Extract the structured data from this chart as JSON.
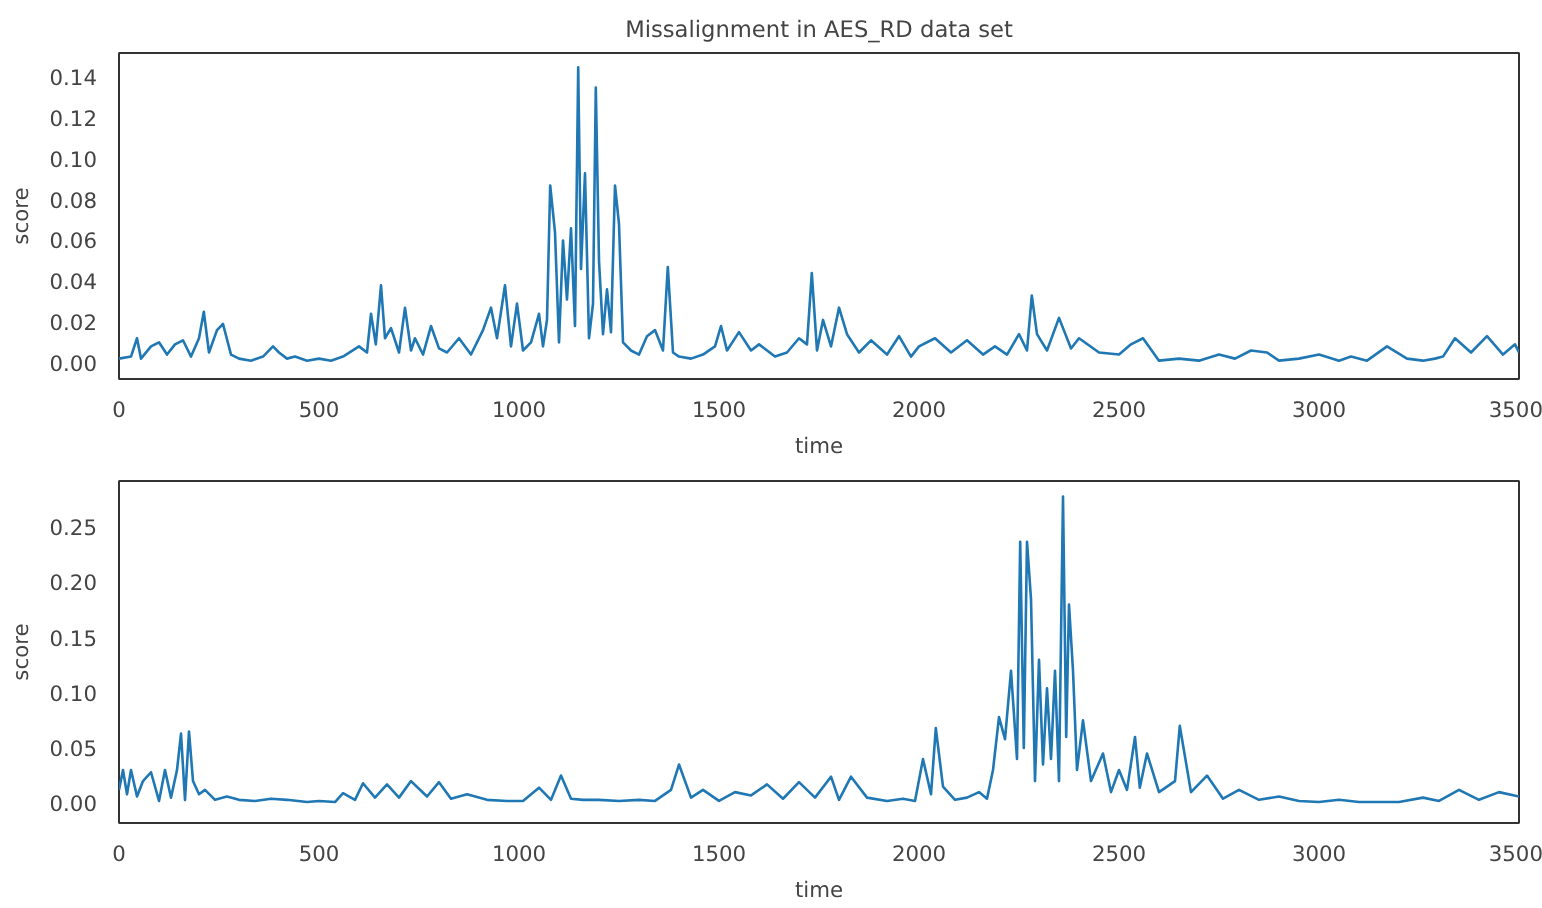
{
  "chart_data": [
    {
      "type": "line",
      "title": "Missalignment in AES_RD data set",
      "xlabel": "time",
      "ylabel": "score",
      "xlim": [
        0,
        3500
      ],
      "ylim": [
        -0.008,
        0.152
      ],
      "xticks": [
        0,
        500,
        1000,
        1500,
        2000,
        2500,
        3000,
        3500
      ],
      "yticks": [
        {
          "value": 0,
          "label": "0.00"
        },
        {
          "value": 0.02,
          "label": "0.02"
        },
        {
          "value": 0.04,
          "label": "0.04"
        },
        {
          "value": 0.06,
          "label": "0.06"
        },
        {
          "value": 0.08,
          "label": "0.08"
        },
        {
          "value": 0.1,
          "label": "0.10"
        },
        {
          "value": 0.12,
          "label": "0.12"
        },
        {
          "value": 0.14,
          "label": "0.14"
        }
      ],
      "grid": false,
      "series": [
        {
          "color": "#1f77b4",
          "x": [
            0,
            30,
            45,
            55,
            80,
            100,
            120,
            140,
            160,
            180,
            200,
            212,
            225,
            245,
            260,
            280,
            300,
            330,
            360,
            385,
            400,
            420,
            440,
            470,
            500,
            530,
            560,
            600,
            620,
            630,
            642,
            655,
            665,
            680,
            700,
            715,
            730,
            740,
            760,
            780,
            800,
            820,
            850,
            880,
            910,
            930,
            945,
            965,
            980,
            995,
            1010,
            1030,
            1050,
            1060,
            1070,
            1078,
            1090,
            1100,
            1110,
            1120,
            1130,
            1140,
            1148,
            1155,
            1165,
            1175,
            1185,
            1192,
            1200,
            1210,
            1220,
            1230,
            1240,
            1250,
            1260,
            1280,
            1300,
            1320,
            1340,
            1360,
            1372,
            1385,
            1400,
            1430,
            1460,
            1490,
            1505,
            1520,
            1550,
            1580,
            1600,
            1640,
            1670,
            1700,
            1720,
            1732,
            1745,
            1760,
            1780,
            1800,
            1820,
            1850,
            1880,
            1920,
            1950,
            1980,
            2000,
            2040,
            2080,
            2120,
            2160,
            2190,
            2220,
            2250,
            2270,
            2282,
            2295,
            2320,
            2350,
            2380,
            2400,
            2450,
            2500,
            2530,
            2560,
            2600,
            2650,
            2700,
            2750,
            2790,
            2830,
            2870,
            2900,
            2950,
            3000,
            3050,
            3080,
            3120,
            3170,
            3220,
            3260,
            3290,
            3310,
            3340,
            3380,
            3420,
            3460,
            3490,
            3500
          ],
          "values": [
            0.002,
            0.003,
            0.012,
            0.002,
            0.008,
            0.01,
            0.004,
            0.009,
            0.011,
            0.003,
            0.012,
            0.025,
            0.005,
            0.016,
            0.019,
            0.004,
            0.002,
            0.001,
            0.003,
            0.008,
            0.005,
            0.002,
            0.003,
            0.001,
            0.002,
            0.001,
            0.003,
            0.008,
            0.005,
            0.024,
            0.009,
            0.038,
            0.012,
            0.017,
            0.005,
            0.027,
            0.006,
            0.012,
            0.004,
            0.018,
            0.007,
            0.005,
            0.012,
            0.004,
            0.016,
            0.027,
            0.012,
            0.038,
            0.008,
            0.029,
            0.006,
            0.01,
            0.024,
            0.008,
            0.021,
            0.087,
            0.064,
            0.01,
            0.06,
            0.031,
            0.066,
            0.018,
            0.145,
            0.046,
            0.093,
            0.012,
            0.029,
            0.135,
            0.05,
            0.014,
            0.036,
            0.015,
            0.087,
            0.068,
            0.01,
            0.006,
            0.004,
            0.013,
            0.016,
            0.006,
            0.047,
            0.005,
            0.003,
            0.002,
            0.004,
            0.008,
            0.018,
            0.006,
            0.015,
            0.006,
            0.009,
            0.003,
            0.005,
            0.012,
            0.009,
            0.044,
            0.006,
            0.021,
            0.008,
            0.027,
            0.014,
            0.005,
            0.011,
            0.004,
            0.013,
            0.003,
            0.008,
            0.012,
            0.005,
            0.011,
            0.004,
            0.008,
            0.004,
            0.014,
            0.006,
            0.033,
            0.014,
            0.006,
            0.022,
            0.007,
            0.012,
            0.005,
            0.004,
            0.009,
            0.012,
            0.001,
            0.002,
            0.001,
            0.004,
            0.002,
            0.006,
            0.005,
            0.001,
            0.002,
            0.004,
            0.001,
            0.003,
            0.001,
            0.008,
            0.002,
            0.001,
            0.002,
            0.003,
            0.012,
            0.005,
            0.013,
            0.004,
            0.009,
            0.005
          ]
        }
      ]
    },
    {
      "type": "line",
      "xlabel": "time",
      "ylabel": "score",
      "xlim": [
        0,
        3500
      ],
      "ylim": [
        -0.018,
        0.292
      ],
      "xticks": [
        0,
        500,
        1000,
        1500,
        2000,
        2500,
        3000,
        3500
      ],
      "yticks": [
        {
          "value": 0,
          "label": "0.00"
        },
        {
          "value": 0.05,
          "label": "0.05"
        },
        {
          "value": 0.1,
          "label": "0.10"
        },
        {
          "value": 0.15,
          "label": "0.15"
        },
        {
          "value": 0.2,
          "label": "0.20"
        },
        {
          "value": 0.25,
          "label": "0.25"
        }
      ],
      "grid": false,
      "series": [
        {
          "color": "#1f77b4",
          "x": [
            0,
            10,
            20,
            30,
            45,
            60,
            80,
            100,
            115,
            130,
            145,
            155,
            165,
            175,
            185,
            200,
            215,
            240,
            270,
            300,
            340,
            380,
            420,
            470,
            500,
            540,
            560,
            590,
            610,
            640,
            670,
            700,
            730,
            770,
            800,
            830,
            870,
            920,
            970,
            1010,
            1050,
            1080,
            1105,
            1130,
            1160,
            1200,
            1250,
            1300,
            1340,
            1380,
            1400,
            1430,
            1460,
            1500,
            1540,
            1580,
            1620,
            1660,
            1700,
            1740,
            1780,
            1800,
            1830,
            1870,
            1920,
            1960,
            1990,
            2010,
            2030,
            2042,
            2060,
            2090,
            2120,
            2150,
            2170,
            2185,
            2200,
            2215,
            2230,
            2245,
            2253,
            2262,
            2270,
            2280,
            2290,
            2300,
            2310,
            2320,
            2330,
            2340,
            2350,
            2360,
            2368,
            2375,
            2385,
            2395,
            2410,
            2430,
            2460,
            2480,
            2500,
            2520,
            2540,
            2552,
            2570,
            2600,
            2640,
            2652,
            2680,
            2720,
            2760,
            2800,
            2850,
            2900,
            2950,
            3000,
            3050,
            3100,
            3200,
            3260,
            3300,
            3350,
            3400,
            3450,
            3500
          ],
          "values": [
            0.012,
            0.03,
            0.008,
            0.03,
            0.006,
            0.02,
            0.028,
            0.002,
            0.03,
            0.005,
            0.03,
            0.063,
            0.003,
            0.065,
            0.02,
            0.008,
            0.012,
            0.003,
            0.006,
            0.003,
            0.002,
            0.004,
            0.003,
            0.001,
            0.002,
            0.001,
            0.009,
            0.003,
            0.018,
            0.005,
            0.017,
            0.005,
            0.02,
            0.006,
            0.019,
            0.004,
            0.008,
            0.003,
            0.002,
            0.002,
            0.014,
            0.003,
            0.025,
            0.004,
            0.003,
            0.003,
            0.002,
            0.003,
            0.002,
            0.012,
            0.035,
            0.005,
            0.012,
            0.002,
            0.01,
            0.007,
            0.017,
            0.004,
            0.019,
            0.005,
            0.024,
            0.003,
            0.024,
            0.005,
            0.002,
            0.004,
            0.002,
            0.04,
            0.008,
            0.068,
            0.015,
            0.003,
            0.005,
            0.01,
            0.004,
            0.03,
            0.078,
            0.058,
            0.12,
            0.04,
            0.237,
            0.05,
            0.237,
            0.185,
            0.02,
            0.13,
            0.035,
            0.104,
            0.04,
            0.12,
            0.02,
            0.278,
            0.06,
            0.18,
            0.12,
            0.03,
            0.075,
            0.02,
            0.045,
            0.01,
            0.03,
            0.012,
            0.06,
            0.014,
            0.045,
            0.01,
            0.02,
            0.07,
            0.01,
            0.025,
            0.004,
            0.012,
            0.003,
            0.006,
            0.002,
            0.001,
            0.003,
            0.001,
            0.001,
            0.005,
            0.002,
            0.012,
            0.003,
            0.01,
            0.006
          ]
        }
      ]
    }
  ]
}
